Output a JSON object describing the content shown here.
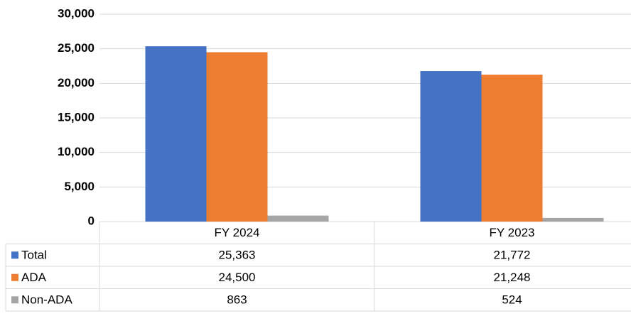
{
  "chart_data": {
    "type": "bar",
    "categories": [
      "FY 2024",
      "FY 2023"
    ],
    "series": [
      {
        "name": "Total",
        "color": "#4472c4",
        "values": [
          25363,
          21772
        ],
        "value_labels": [
          "25,363",
          "21,772"
        ]
      },
      {
        "name": "ADA",
        "color": "#ed7d31",
        "values": [
          24500,
          21248
        ],
        "value_labels": [
          "24,500",
          "21,248"
        ]
      },
      {
        "name": "Non-ADA",
        "color": "#a5a5a5",
        "values": [
          863,
          524
        ],
        "value_labels": [
          "863",
          "524"
        ]
      }
    ],
    "ylim": [
      0,
      30000
    ],
    "yticks": [
      0,
      {
        "value": 5000,
        "label": "5,000"
      },
      {
        "value": 10000,
        "label": "10,000"
      },
      {
        "value": 15000,
        "label": "15,000"
      },
      {
        "value": 20000,
        "label": "20,000"
      },
      {
        "value": 25000,
        "label": "25,000"
      },
      {
        "value": 30000,
        "label": "30,000"
      }
    ],
    "grid": true
  }
}
